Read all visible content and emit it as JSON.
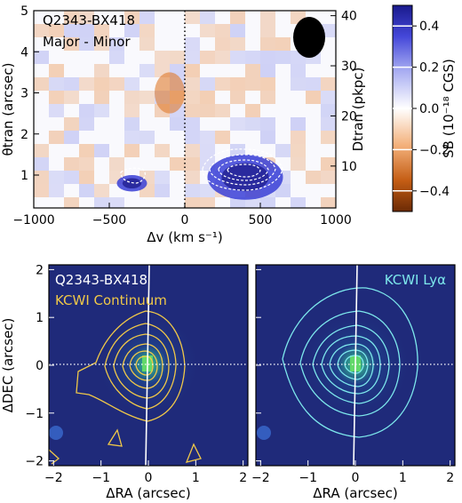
{
  "chart_data": [
    {
      "type": "heatmap",
      "panel": "position-velocity",
      "title": "",
      "annotations": [
        "Q2343-BX418",
        "Major - Minor"
      ],
      "xlabel": "Δv (km s⁻¹)",
      "ylabel": "θtran (arcsec)",
      "ylabel_right": "Dtran (pkpc)",
      "xlim": [
        -1000,
        1000
      ],
      "ylim": [
        0.2,
        5.0
      ],
      "x_ticks": [
        -1000,
        -500,
        0,
        500,
        1000
      ],
      "y_ticks": [
        1,
        2,
        3,
        4,
        5
      ],
      "y2_ticks": [
        10,
        20,
        30,
        40
      ],
      "colorbar": {
        "label": "SB (10⁻¹⁸ CGS)",
        "range": [
          -0.5,
          0.5
        ],
        "ticks": [
          -0.4,
          -0.2,
          0.0,
          0.2,
          0.4
        ],
        "colors": {
          "low": "#6b2a05",
          "mid": "#ffffff",
          "high": "#1a1a8c"
        }
      },
      "vertical_line_x": 0,
      "beam_ellipse": true,
      "features": [
        {
          "type": "positive_emission_blob",
          "x_range": [
            150,
            650
          ],
          "y_range": [
            0.4,
            1.5
          ]
        },
        {
          "type": "positive_emission_blob",
          "x_range": [
            -450,
            -250
          ],
          "y_range": [
            0.6,
            1.0
          ]
        },
        {
          "type": "negative_emission_stripe",
          "x_range": [
            -200,
            0
          ],
          "y_range": [
            2.5,
            3.5
          ]
        }
      ]
    },
    {
      "type": "heatmap",
      "panel": "image-continuum",
      "annotations": [
        "Q2343-BX418",
        "KCWI Continuum"
      ],
      "xlabel": "ΔRA (arcsec)",
      "ylabel": "ΔDEC (arcsec)",
      "xlim": [
        -2.1,
        2.1
      ],
      "ylim": [
        -2.1,
        2.1
      ],
      "x_ticks": [
        -2,
        -1,
        0,
        1,
        2
      ],
      "y_ticks": [
        -2,
        -1,
        0,
        1,
        2
      ],
      "contour_color": "#f0c848",
      "peak": [
        0,
        0
      ],
      "secondary_source": [
        -1.9,
        -1.4
      ]
    },
    {
      "type": "heatmap",
      "panel": "image-lyalpha",
      "annotations": [
        "KCWI Lyα"
      ],
      "xlabel": "ΔRA (arcsec)",
      "ylabel": "",
      "xlim": [
        -2.1,
        2.1
      ],
      "ylim": [
        -2.1,
        2.1
      ],
      "x_ticks": [
        -2,
        -1,
        0,
        1,
        2
      ],
      "y_ticks": [
        -2,
        -1,
        0,
        1,
        2
      ],
      "contour_color": "#7de8ec",
      "peak": [
        0,
        0
      ],
      "secondary_source": [
        -1.9,
        -1.4
      ]
    }
  ]
}
